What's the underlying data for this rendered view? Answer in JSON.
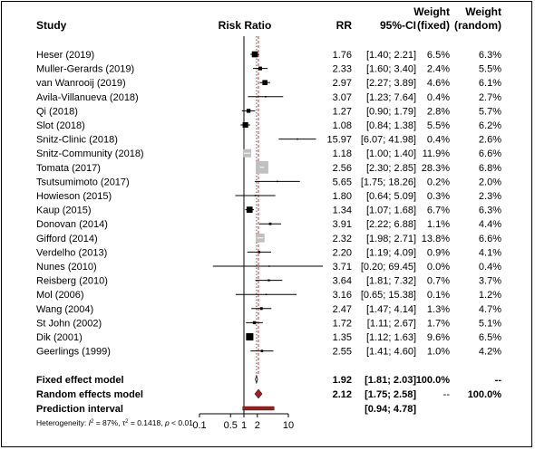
{
  "chart_data": {
    "type": "forest",
    "xscale": "log",
    "xlim": [
      0.1,
      10
    ],
    "xticks": [
      "0.1",
      "0.5",
      "1",
      "2",
      "10"
    ],
    "headers": {
      "study": "Study",
      "plot": "Risk Ratio",
      "rr": "RR",
      "ci": "95%-CI",
      "weight_fixed_top": "Weight",
      "weight_fixed_bottom": "(fixed)",
      "weight_random_top": "Weight",
      "weight_random_bottom": "(random)"
    },
    "studies": [
      {
        "name": "Heser (2019)",
        "rr": 1.76,
        "lo": 1.4,
        "hi": 2.21,
        "rr_text": "1.76",
        "ci_text": "[1.40;  2.21]",
        "wf": "6.5%",
        "wr": "6.3%",
        "w": 6.5
      },
      {
        "name": "Muller-Gerards (2019)",
        "rr": 2.33,
        "lo": 1.6,
        "hi": 3.4,
        "rr_text": "2.33",
        "ci_text": "[1.60;  3.40]",
        "wf": "2.4%",
        "wr": "5.5%",
        "w": 2.4
      },
      {
        "name": "van Wanrooij (2019)",
        "rr": 2.97,
        "lo": 2.27,
        "hi": 3.89,
        "rr_text": "2.97",
        "ci_text": "[2.27;  3.89]",
        "wf": "4.6%",
        "wr": "6.1%",
        "w": 4.6
      },
      {
        "name": "Avila-Villanueva (2018)",
        "rr": 3.07,
        "lo": 1.23,
        "hi": 7.64,
        "rr_text": "3.07",
        "ci_text": "[1.23;  7.64]",
        "wf": "0.4%",
        "wr": "2.7%",
        "w": 0.4
      },
      {
        "name": "Qi (2018)",
        "rr": 1.27,
        "lo": 0.9,
        "hi": 1.79,
        "rr_text": "1.27",
        "ci_text": "[0.90;  1.79]",
        "wf": "2.8%",
        "wr": "5.7%",
        "w": 2.8
      },
      {
        "name": "Slot (2018)",
        "rr": 1.08,
        "lo": 0.84,
        "hi": 1.38,
        "rr_text": "1.08",
        "ci_text": "[0.84;  1.38]",
        "wf": "5.5%",
        "wr": "6.2%",
        "w": 5.5
      },
      {
        "name": "Snitz-Clinic (2018)",
        "rr": 15.97,
        "lo": 6.07,
        "hi": 41.98,
        "rr_text": "15.97",
        "ci_text": "[6.07; 41.98]",
        "wf": "0.4%",
        "wr": "2.6%",
        "w": 0.4
      },
      {
        "name": "Snitz-Community (2018)",
        "rr": 1.18,
        "lo": 1.0,
        "hi": 1.4,
        "rr_text": "1.18",
        "ci_text": "[1.00;  1.40]",
        "wf": "11.9%",
        "wr": "6.6%",
        "w": 11.9
      },
      {
        "name": "Tomata (2017)",
        "rr": 2.56,
        "lo": 2.3,
        "hi": 2.85,
        "rr_text": "2.56",
        "ci_text": "[2.30;  2.85]",
        "wf": "28.3%",
        "wr": "6.8%",
        "w": 28.3
      },
      {
        "name": "Tsutsumimoto (2017)",
        "rr": 5.65,
        "lo": 1.75,
        "hi": 18.26,
        "rr_text": "5.65",
        "ci_text": "[1.75; 18.26]",
        "wf": "0.2%",
        "wr": "2.0%",
        "w": 0.2
      },
      {
        "name": "Howieson (2015)",
        "rr": 1.8,
        "lo": 0.64,
        "hi": 5.09,
        "rr_text": "1.80",
        "ci_text": "[0.64;  5.09]",
        "wf": "0.3%",
        "wr": "2.3%",
        "w": 0.3
      },
      {
        "name": "Kaup (2015)",
        "rr": 1.34,
        "lo": 1.07,
        "hi": 1.68,
        "rr_text": "1.34",
        "ci_text": "[1.07;  1.68]",
        "wf": "6.7%",
        "wr": "6.3%",
        "w": 6.7
      },
      {
        "name": "Donovan (2014)",
        "rr": 3.91,
        "lo": 2.22,
        "hi": 6.88,
        "rr_text": "3.91",
        "ci_text": "[2.22;  6.88]",
        "wf": "1.1%",
        "wr": "4.4%",
        "w": 1.1
      },
      {
        "name": "Gifford (2014)",
        "rr": 2.32,
        "lo": 1.98,
        "hi": 2.71,
        "rr_text": "2.32",
        "ci_text": "[1.98;  2.71]",
        "wf": "13.8%",
        "wr": "6.6%",
        "w": 13.8
      },
      {
        "name": "Verdelho (2013)",
        "rr": 2.2,
        "lo": 1.19,
        "hi": 4.09,
        "rr_text": "2.20",
        "ci_text": "[1.19;  4.09]",
        "wf": "0.9%",
        "wr": "4.1%",
        "w": 0.9
      },
      {
        "name": "Nunes (2010)",
        "rr": 3.71,
        "lo": 0.2,
        "hi": 69.45,
        "rr_text": "3.71",
        "ci_text": "[0.20; 69.45]",
        "wf": "0.0%",
        "wr": "0.4%",
        "w": 0.0
      },
      {
        "name": "Reisberg (2010)",
        "rr": 3.64,
        "lo": 1.81,
        "hi": 7.32,
        "rr_text": "3.64",
        "ci_text": "[1.81;  7.32]",
        "wf": "0.7%",
        "wr": "3.7%",
        "w": 0.7
      },
      {
        "name": "Mol (2006)",
        "rr": 3.16,
        "lo": 0.65,
        "hi": 15.38,
        "rr_text": "3.16",
        "ci_text": "[0.65; 15.38]",
        "wf": "0.1%",
        "wr": "1.2%",
        "w": 0.1
      },
      {
        "name": "Wang (2004)",
        "rr": 2.47,
        "lo": 1.47,
        "hi": 4.14,
        "rr_text": "2.47",
        "ci_text": "[1.47;  4.14]",
        "wf": "1.3%",
        "wr": "4.7%",
        "w": 1.3
      },
      {
        "name": "St John (2002)",
        "rr": 1.72,
        "lo": 1.11,
        "hi": 2.67,
        "rr_text": "1.72",
        "ci_text": "[1.11;  2.67]",
        "wf": "1.7%",
        "wr": "5.1%",
        "w": 1.7
      },
      {
        "name": "Dik (2001)",
        "rr": 1.35,
        "lo": 1.12,
        "hi": 1.63,
        "rr_text": "1.35",
        "ci_text": "[1.12;  1.63]",
        "wf": "9.6%",
        "wr": "6.5%",
        "w": 9.6
      },
      {
        "name": "Geerlings (1999)",
        "rr": 2.55,
        "lo": 1.41,
        "hi": 4.6,
        "rr_text": "2.55",
        "ci_text": "[1.41;  4.60]",
        "wf": "1.0%",
        "wr": "4.2%",
        "w": 1.0
      }
    ],
    "fixed": {
      "label": "Fixed effect model",
      "rr": 1.92,
      "lo": 1.81,
      "hi": 2.03,
      "rr_text": "1.92",
      "ci_text": "[1.81;  2.03]",
      "wf": "100.0%",
      "wr": "--"
    },
    "random": {
      "label": "Random effects model",
      "rr": 2.12,
      "lo": 1.75,
      "hi": 2.58,
      "rr_text": "2.12",
      "ci_text": "[1.75;  2.58]",
      "wf": "--",
      "wr": "100.0%"
    },
    "prediction": {
      "label": "Prediction interval",
      "lo": 0.94,
      "hi": 4.78,
      "ci_text": "[0.94;  4.78]"
    },
    "heterogeneity": {
      "prefix": "Heterogeneity: ",
      "i2_label": "I",
      "i2_sup": "2",
      "i2_value": " = 87%, ",
      "tau_label": "τ",
      "tau_sup": "2",
      "tau_value": " = 0.1418, ",
      "p_label": "p",
      "p_value": " < 0.01"
    },
    "colors": {
      "study_square": "#000000",
      "large_weight_square": "#c0c0c0",
      "random_diamond": "#a02020",
      "prediction_bar": "#a02020",
      "random_line": "#cc3333",
      "fixed_line": "#555555"
    }
  }
}
